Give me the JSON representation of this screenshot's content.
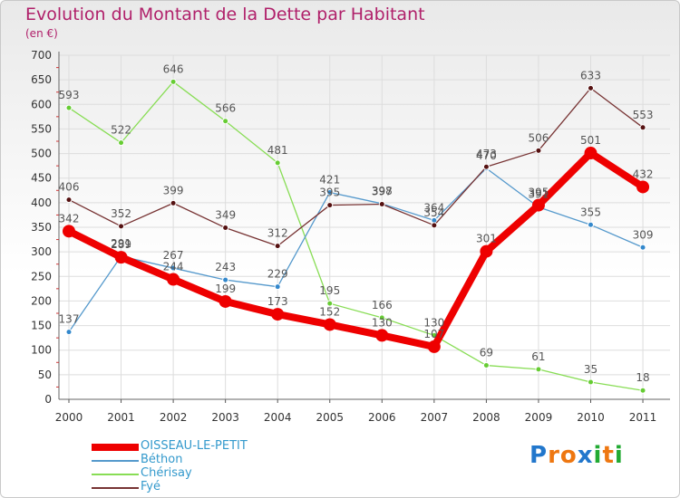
{
  "title": "Evolution du Montant de la Dette par Habitant",
  "unit": "(en €)",
  "logo": {
    "text": "Proxiti",
    "letters": [
      "P",
      "r",
      "o",
      "x",
      "i",
      "t",
      "i"
    ],
    "colors": [
      "#2277cc",
      "#ee7711",
      "#ee7711",
      "#2277cc",
      "#22aa33",
      "#ee7711",
      "#22aa33"
    ]
  },
  "chart_data": {
    "type": "line",
    "title": "Evolution du Montant de la Dette par Habitant",
    "ylabel": "(en €)",
    "x": [
      "2000",
      "2001",
      "2002",
      "2003",
      "2004",
      "2005",
      "2006",
      "2007",
      "2008",
      "2009",
      "2010",
      "2011"
    ],
    "ylim": [
      0,
      700
    ],
    "yticks": [
      0,
      50,
      100,
      150,
      200,
      250,
      300,
      350,
      400,
      450,
      500,
      550,
      600,
      650,
      700
    ],
    "grid": true,
    "legend": "bottom-left",
    "series": [
      {
        "name": "OISSEAU-LE-PETIT",
        "color": "#ee0000",
        "values": [
          342,
          289,
          244,
          199,
          173,
          152,
          130,
          107,
          301,
          395,
          501,
          432
        ]
      },
      {
        "name": "Béthon",
        "color": "#5599cc",
        "values": [
          137,
          291,
          267,
          243,
          229,
          421,
          398,
          364,
          470,
          391,
          355,
          309
        ]
      },
      {
        "name": "Chérisay",
        "color": "#88dd55",
        "values": [
          593,
          522,
          646,
          566,
          481,
          195,
          166,
          130,
          69,
          61,
          35,
          18
        ]
      },
      {
        "name": "Fyé",
        "color": "#773333",
        "values": [
          406,
          352,
          399,
          349,
          312,
          395,
          397,
          354,
          473,
          506,
          633,
          553
        ]
      }
    ],
    "labels": [
      [
        "342",
        "289",
        "244",
        "199",
        "173",
        "152",
        "130",
        "107",
        "301",
        "395",
        "501",
        "432"
      ],
      [
        "137",
        "291",
        "267",
        "243",
        "229",
        "421",
        "398",
        "364",
        "470",
        "391",
        "355",
        "309"
      ],
      [
        "593",
        "522",
        "646",
        "566",
        "481",
        "195",
        "166",
        "130",
        "69",
        "61",
        "35",
        "18"
      ],
      [
        "406",
        "352",
        "399",
        "349",
        "312",
        "395",
        "397",
        "354",
        "473",
        "506",
        "633",
        "553"
      ]
    ]
  }
}
